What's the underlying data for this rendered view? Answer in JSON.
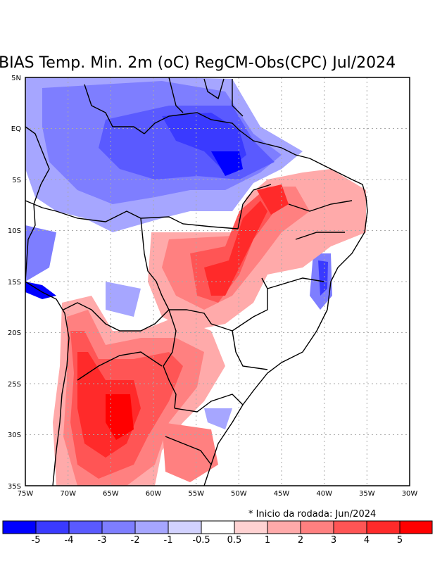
{
  "title": "BIAS Temp. Min. 2m (oC) RegCM-Obs(CPC) Jul/2024",
  "note": "* Inicio da rodada: Jun/2024",
  "map": {
    "lat_labels": [
      "5N",
      "EQ",
      "5S",
      "10S",
      "15S",
      "20S",
      "25S",
      "30S",
      "35S"
    ],
    "lat_values": [
      5,
      0,
      -5,
      -10,
      -15,
      -20,
      -25,
      -30,
      -35
    ],
    "lon_labels": [
      "75W",
      "70W",
      "65W",
      "60W",
      "55W",
      "50W",
      "45W",
      "40W",
      "35W",
      "30W"
    ],
    "lon_values": [
      -75,
      -70,
      -65,
      -60,
      -55,
      -50,
      -45,
      -40,
      -35,
      -30
    ]
  },
  "colorbar": {
    "colors": [
      "#0000ff",
      "#3a3aff",
      "#5a5aff",
      "#7e7eff",
      "#a6a6ff",
      "#d2d2ff",
      "#ffffff",
      "#ffd2d2",
      "#ffaaaa",
      "#ff8080",
      "#ff5555",
      "#ff2a2a",
      "#ff0000"
    ],
    "labels": [
      "-5",
      "-4",
      "-3",
      "-2",
      "-1",
      "-0.5",
      "0.5",
      "1",
      "2",
      "3",
      "4",
      "5"
    ]
  }
}
